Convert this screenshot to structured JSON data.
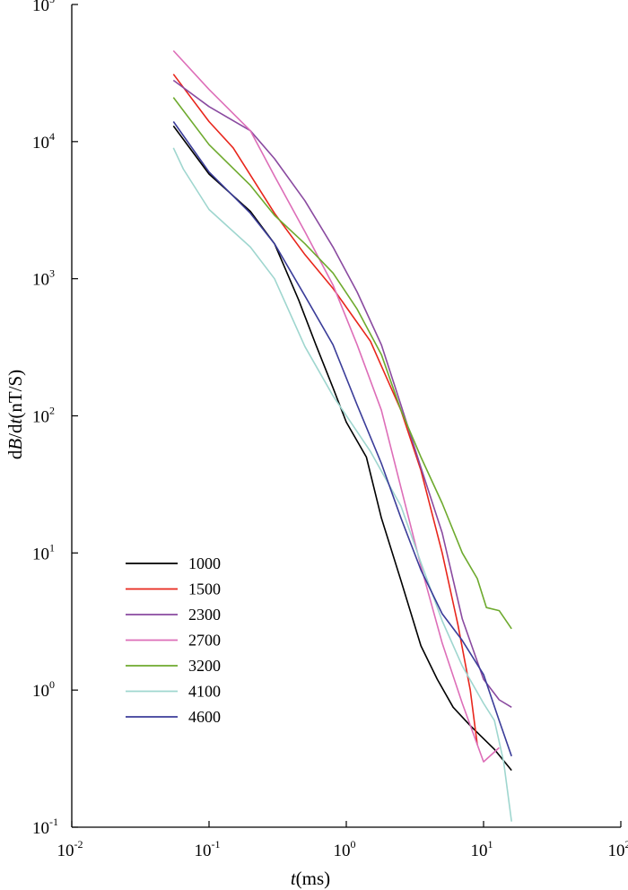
{
  "chart_data": {
    "type": "line",
    "title": "",
    "xlabel": {
      "var": "t",
      "unit": "(ms)"
    },
    "ylabel": {
      "prefix": "d",
      "var1": "B",
      "slash": "/d",
      "var2": "t",
      "unit": "(nT/S)"
    },
    "xscale": "log",
    "yscale": "log",
    "xlim": [
      0.01,
      100
    ],
    "ylim": [
      0.1,
      100000
    ],
    "grid": false,
    "legend_position": "bottom-left",
    "x_ticks": [
      {
        "value": 0.01,
        "base": "10",
        "exp": "-2"
      },
      {
        "value": 0.1,
        "base": "10",
        "exp": "-1"
      },
      {
        "value": 1,
        "base": "10",
        "exp": "0"
      },
      {
        "value": 10,
        "base": "10",
        "exp": "1"
      },
      {
        "value": 100,
        "base": "10",
        "exp": "2"
      }
    ],
    "y_ticks": [
      {
        "value": 0.1,
        "base": "10",
        "exp": "-1"
      },
      {
        "value": 1,
        "base": "10",
        "exp": "0"
      },
      {
        "value": 10,
        "base": "10",
        "exp": "1"
      },
      {
        "value": 100,
        "base": "10",
        "exp": "2"
      },
      {
        "value": 1000,
        "base": "10",
        "exp": "3"
      },
      {
        "value": 10000,
        "base": "10",
        "exp": "4"
      },
      {
        "value": 100000,
        "base": "10",
        "exp": "5"
      }
    ],
    "series": [
      {
        "name": "1000",
        "color": "#000000",
        "points": [
          [
            0.055,
            13000
          ],
          [
            0.1,
            5800
          ],
          [
            0.2,
            3100
          ],
          [
            0.3,
            1800
          ],
          [
            0.45,
            700
          ],
          [
            0.6,
            330
          ],
          [
            0.8,
            160
          ],
          [
            1.0,
            90
          ],
          [
            1.4,
            50
          ],
          [
            1.8,
            18
          ],
          [
            2.5,
            6.3
          ],
          [
            3.5,
            2.1
          ],
          [
            4.6,
            1.2
          ],
          [
            6.0,
            0.75
          ],
          [
            8.0,
            0.55
          ],
          [
            12,
            0.37
          ],
          [
            16,
            0.26
          ]
        ]
      },
      {
        "name": "1500",
        "color": "#e8261c",
        "points": [
          [
            0.055,
            31000
          ],
          [
            0.1,
            14000
          ],
          [
            0.15,
            9000
          ],
          [
            0.3,
            3000
          ],
          [
            0.5,
            1500
          ],
          [
            0.8,
            850
          ],
          [
            1.5,
            350
          ],
          [
            2.5,
            110
          ],
          [
            3.5,
            40
          ],
          [
            5.0,
            10
          ],
          [
            6.5,
            3
          ],
          [
            8.0,
            1.0
          ],
          [
            9.0,
            0.4
          ]
        ]
      },
      {
        "name": "2300",
        "color": "#8a4aa0",
        "points": [
          [
            0.055,
            28000
          ],
          [
            0.1,
            18000
          ],
          [
            0.2,
            12000
          ],
          [
            0.3,
            7500
          ],
          [
            0.5,
            3700
          ],
          [
            0.8,
            1700
          ],
          [
            1.2,
            800
          ],
          [
            1.8,
            330
          ],
          [
            2.5,
            120
          ],
          [
            3.5,
            42
          ],
          [
            5.0,
            14
          ],
          [
            7.0,
            3.3
          ],
          [
            10,
            1.2
          ],
          [
            13,
            0.85
          ],
          [
            16,
            0.75
          ]
        ]
      },
      {
        "name": "2700",
        "color": "#dd6eb8",
        "points": [
          [
            0.055,
            46000
          ],
          [
            0.1,
            24000
          ],
          [
            0.2,
            12000
          ],
          [
            0.3,
            5600
          ],
          [
            0.5,
            2200
          ],
          [
            0.8,
            900
          ],
          [
            1.2,
            330
          ],
          [
            1.8,
            110
          ],
          [
            2.5,
            30
          ],
          [
            3.5,
            8.0
          ],
          [
            5.0,
            2.2
          ],
          [
            7.0,
            0.8
          ],
          [
            10,
            0.3
          ],
          [
            13,
            0.38
          ]
        ]
      },
      {
        "name": "3200",
        "color": "#6eaa2e",
        "points": [
          [
            0.055,
            21000
          ],
          [
            0.1,
            9500
          ],
          [
            0.2,
            4800
          ],
          [
            0.3,
            2900
          ],
          [
            0.5,
            1800
          ],
          [
            0.8,
            1100
          ],
          [
            1.2,
            600
          ],
          [
            1.8,
            280
          ],
          [
            2.5,
            110
          ],
          [
            3.5,
            50
          ],
          [
            5.0,
            23
          ],
          [
            7.0,
            10
          ],
          [
            9.0,
            6.5
          ],
          [
            10.5,
            4.0
          ],
          [
            13,
            3.8
          ],
          [
            16,
            2.8
          ]
        ]
      },
      {
        "name": "4100",
        "color": "#9fd6cf",
        "points": [
          [
            0.055,
            9000
          ],
          [
            0.065,
            6300
          ],
          [
            0.1,
            3200
          ],
          [
            0.2,
            1700
          ],
          [
            0.3,
            1000
          ],
          [
            0.5,
            320
          ],
          [
            0.8,
            140
          ],
          [
            1.5,
            55
          ],
          [
            2.5,
            22
          ],
          [
            3.5,
            8.5
          ],
          [
            5.0,
            3.2
          ],
          [
            7.0,
            1.5
          ],
          [
            10,
            0.8
          ],
          [
            12,
            0.6
          ],
          [
            14,
            0.3
          ],
          [
            16,
            0.11
          ]
        ]
      },
      {
        "name": "4600",
        "color": "#3b3d99",
        "points": [
          [
            0.055,
            14000
          ],
          [
            0.1,
            6000
          ],
          [
            0.2,
            3000
          ],
          [
            0.3,
            1800
          ],
          [
            0.5,
            750
          ],
          [
            0.8,
            330
          ],
          [
            1.2,
            120
          ],
          [
            1.8,
            45
          ],
          [
            2.5,
            18
          ],
          [
            3.5,
            7.5
          ],
          [
            5.0,
            3.6
          ],
          [
            7.0,
            2.3
          ],
          [
            10,
            1.3
          ],
          [
            13,
            0.6
          ],
          [
            16,
            0.33
          ]
        ]
      }
    ]
  }
}
